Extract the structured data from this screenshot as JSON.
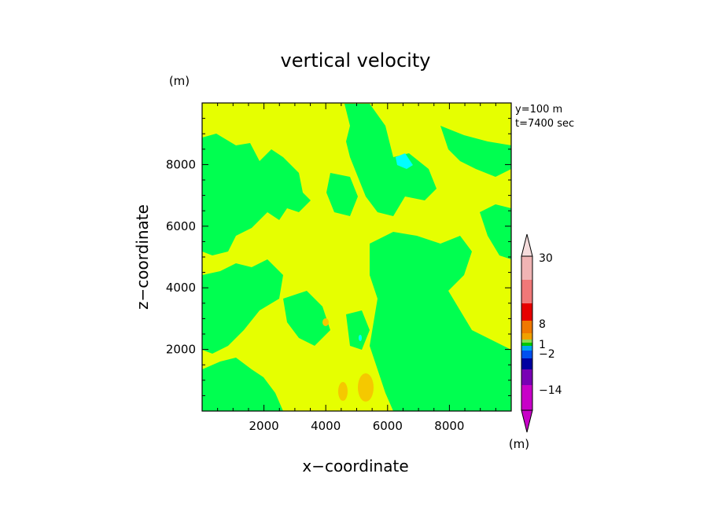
{
  "chart_data": {
    "type": "heatmap",
    "title": "vertical velocity",
    "xlabel": "x−coordinate",
    "ylabel": "z−coordinate",
    "y_unit": "(m)",
    "info_lines": [
      "y=100  m",
      "t=7400  sec"
    ],
    "xlim": [
      0,
      10000
    ],
    "ylim": [
      0,
      10000
    ],
    "x_ticks": [
      2000,
      4000,
      6000,
      8000
    ],
    "y_ticks": [
      2000,
      4000,
      6000,
      8000
    ],
    "colorbar": {
      "unit": "(m)",
      "levels": [
        -14,
        -2,
        1,
        8,
        30
      ],
      "tick_labels": [
        "30",
        "8",
        "1",
        "−2",
        "−14"
      ],
      "colors_top_to_bottom": [
        "#f0b4b4",
        "#f07878",
        "#e60000",
        "#f07800",
        "#f0a000",
        "#8cdc50",
        "#00c800",
        "#00a8f0",
        "#0050f0",
        "#0000a0",
        "#7800b4",
        "#c800c8"
      ],
      "under_color": "#c800c8",
      "over_color": "#f5dcdc"
    },
    "field_colors": {
      "negative_weak": "#00ff50",
      "positive_weak": "#e6ff00",
      "positive_moderate": "#f5c800",
      "negative_moderate": "#00ffff"
    },
    "notes": "Field is dominated by weak positive (yellow) and weak negative (green) vertical velocity; small strong-updraft cores near x≈4600-5500 m, z≈500-1000 m."
  }
}
